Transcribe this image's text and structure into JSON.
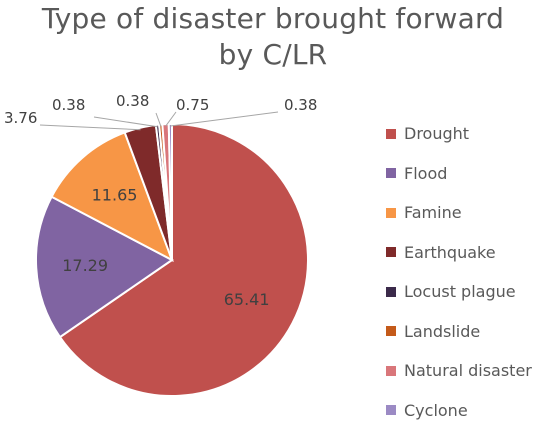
{
  "chart_data": {
    "type": "pie",
    "title_lines": [
      "Type of disaster brought forward",
      "by C/LR"
    ],
    "categories": [
      "Drought",
      "Flood",
      "Famine",
      "Earthquake",
      "Locust plague",
      "Landslide",
      "Natural disaster",
      "Cyclone"
    ],
    "values": [
      65.41,
      17.29,
      11.65,
      3.76,
      0.38,
      0.38,
      0.75,
      0.38
    ],
    "value_labels": [
      "65.41",
      "17.29",
      "11.65",
      "3.76",
      "0.38",
      "0.38",
      "0.75",
      "0.38"
    ],
    "colors": [
      "#c0504d",
      "#8064a2",
      "#f79646",
      "#7f2a2a",
      "#3b2a4a",
      "#c45a1a",
      "#d9767a",
      "#9b8ac4"
    ],
    "label_placement": [
      "inside",
      "inside",
      "inside",
      "outside",
      "outside",
      "outside",
      "outside",
      "outside"
    ],
    "legend_position": "right"
  }
}
